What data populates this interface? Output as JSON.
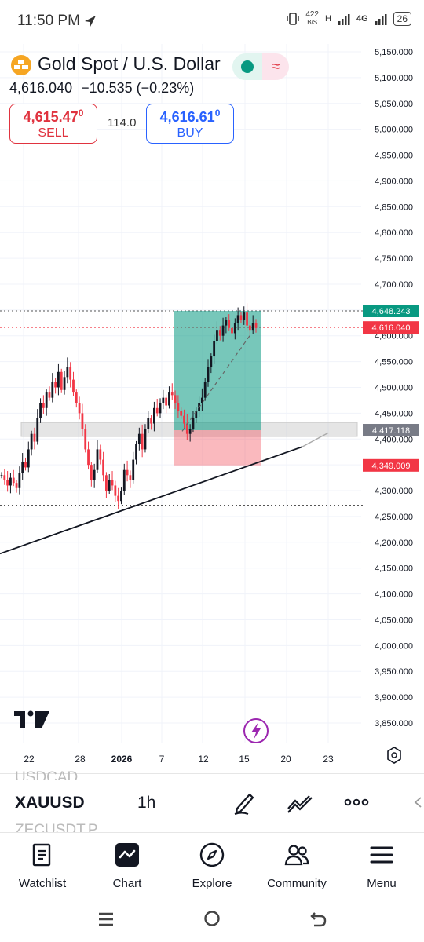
{
  "status_bar": {
    "time": "11:50 PM",
    "net_speed": "422\nB/S",
    "net_speed_top": "422",
    "net_speed_bottom": "B/S",
    "network": "4G",
    "network_h": "H",
    "battery": "26"
  },
  "header": {
    "title": "Gold Spot / U.S. Dollar",
    "price": "4,616.040",
    "change": "−10.535 (−0.23%)",
    "sell": {
      "price_main": "4,615.47",
      "price_sup": "0",
      "label": "SELL"
    },
    "buy": {
      "price_main": "4,616.61",
      "price_sup": "0",
      "label": "BUY"
    },
    "spread": "114.0"
  },
  "chart_data": {
    "type": "candlestick",
    "symbol": "XAUUSD",
    "interval": "1h",
    "y_axis": {
      "min": 3850,
      "max": 5150,
      "ticks": [
        "5,150.000",
        "5,100.000",
        "5,050.000",
        "5,000.000",
        "4,950.000",
        "4,900.000",
        "4,850.000",
        "4,800.000",
        "4,750.000",
        "4,700.000",
        "4,650.000",
        "4,600.000",
        "4,550.000",
        "4,500.000",
        "4,450.000",
        "4,400.000",
        "4,350.000",
        "4,300.000",
        "4,250.000",
        "4,200.000",
        "4,150.000",
        "4,100.000",
        "4,050.000",
        "4,000.000",
        "3,950.000",
        "3,900.000",
        "3,850.000"
      ]
    },
    "x_axis": {
      "ticks": [
        "22",
        "28",
        "2026",
        "7",
        "12",
        "15",
        "20",
        "23"
      ]
    },
    "price_labels": [
      {
        "value": 4648.243,
        "text": "4,648.243",
        "color": "#089981"
      },
      {
        "value": 4616.04,
        "text": "4,616.040",
        "color": "#f23645"
      },
      {
        "value": 4417.118,
        "text": "4,417.118",
        "color": "#787b86"
      },
      {
        "value": 4349.009,
        "text": "4,349.009",
        "color": "#f23645"
      }
    ],
    "position": {
      "type": "long",
      "entry": 4417.118,
      "target": 4648.243,
      "stop": 4349.009
    },
    "horizontal_lines": [
      4648.243,
      4616.04,
      4272
    ],
    "support_zone": [
      4405,
      4432
    ],
    "trendline": {
      "from_price": 4178,
      "to_price": 4412
    },
    "candle_path": [
      4330,
      4320,
      4310,
      4325,
      4315,
      4305,
      4335,
      4355,
      4345,
      4380,
      4410,
      4395,
      4440,
      4470,
      4460,
      4490,
      4480,
      4510,
      4500,
      4530,
      4495,
      4520,
      4540,
      4515,
      4490,
      4470,
      4450,
      4420,
      4380,
      4350,
      4320,
      4340,
      4380,
      4360,
      4330,
      4300,
      4320,
      4310,
      4290,
      4280,
      4300,
      4340,
      4330,
      4320,
      4360,
      4390,
      4410,
      4380,
      4420,
      4440,
      4430,
      4460,
      4450,
      4470,
      4480,
      4465,
      4490,
      4485,
      4470,
      4455,
      4445,
      4430,
      4410,
      4420,
      4440,
      4455,
      4470,
      4480,
      4510,
      4540,
      4560,
      4590,
      4610,
      4600,
      4620,
      4630,
      4615,
      4605,
      4625,
      4640,
      4630,
      4645,
      4620,
      4610,
      4625,
      4615
    ],
    "colors": {
      "up": "#089981",
      "down": "#f23645",
      "target_zone": "rgba(8,153,129,0.55)",
      "stop_zone": "rgba(242,54,69,0.35)"
    }
  },
  "toolbar": {
    "symbol": "XAUUSD",
    "timeframe": "1h",
    "prev_symbol": "USDCAD",
    "next_symbol": "ZECUSDT.P"
  },
  "tabs": [
    {
      "label": "Watchlist",
      "icon": "watchlist-icon"
    },
    {
      "label": "Chart",
      "icon": "chart-icon"
    },
    {
      "label": "Explore",
      "icon": "compass-icon"
    },
    {
      "label": "Community",
      "icon": "community-icon"
    },
    {
      "label": "Menu",
      "icon": "hamburger-menu-icon"
    }
  ],
  "nav": {
    "icons": [
      "recents-icon",
      "home-icon",
      "back-icon"
    ]
  }
}
